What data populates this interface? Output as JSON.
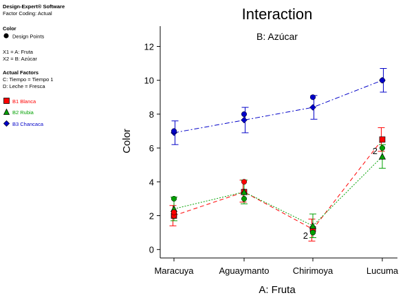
{
  "sidebar": {
    "software_title": "Design-Expert® Software",
    "factor_coding": "Factor Coding: Actual",
    "color_heading": "Color",
    "design_points_label": "Design Points",
    "x1_label": "X1 = A: Fruta",
    "x2_label": "X2 = B: Azúcar",
    "actual_factors_heading": "Actual Factors",
    "factor_c": "C: Tiempo = Tiempo 1",
    "factor_d": "D: Leche = Fresca",
    "legend": [
      {
        "label": "B1 Blanca",
        "color": "#ff0000",
        "symbol": "square"
      },
      {
        "label": "B2 Rubia",
        "color": "#00a000",
        "symbol": "triangle"
      },
      {
        "label": "B3 Chancaca",
        "color": "#0000c8",
        "symbol": "diamond"
      }
    ]
  },
  "chart_data": {
    "type": "line",
    "title": "Interaction",
    "subtitle": "B: Azúcar",
    "xlabel": "A: Fruta",
    "ylabel": "Color",
    "categories": [
      "Maracuya",
      "Aguaymanto",
      "Chirimoya",
      "Lucuma"
    ],
    "ylim": [
      -0.5,
      13.2
    ],
    "yticks": [
      0,
      2,
      4,
      6,
      8,
      10,
      12
    ],
    "series": [
      {
        "name": "B1 Blanca",
        "color": "#ff0000",
        "marker": "square",
        "dash": "dash",
        "values": [
          2.0,
          3.4,
          1.2,
          6.5
        ],
        "lower": [
          1.4,
          2.8,
          0.5,
          5.8
        ],
        "upper": [
          2.6,
          4.1,
          1.8,
          7.2
        ]
      },
      {
        "name": "B2 Rubia",
        "color": "#00a000",
        "marker": "triangle",
        "dash": "dot",
        "values": [
          2.4,
          3.4,
          1.4,
          5.5
        ],
        "lower": [
          1.7,
          2.7,
          0.7,
          4.8
        ],
        "upper": [
          3.1,
          4.1,
          2.1,
          6.2
        ]
      },
      {
        "name": "B3 Chancaca",
        "color": "#0000c8",
        "marker": "diamond",
        "dash": "dashdot",
        "values": [
          6.9,
          7.65,
          8.4,
          10.0
        ],
        "lower": [
          6.2,
          6.9,
          7.7,
          9.3
        ],
        "upper": [
          7.6,
          8.4,
          9.1,
          10.7
        ]
      }
    ],
    "design_points": [
      {
        "category": "Maracuya",
        "y": 2.0,
        "color": "#ff0000"
      },
      {
        "category": "Maracuya",
        "y": 2.2,
        "color": "#ff0000"
      },
      {
        "category": "Maracuya",
        "y": 3.0,
        "color": "#00a000"
      },
      {
        "category": "Maracuya",
        "y": 7.0,
        "color": "#0000c8"
      },
      {
        "category": "Aguaymanto",
        "y": 4.0,
        "color": "#ff0000"
      },
      {
        "category": "Aguaymanto",
        "y": 3.0,
        "color": "#00a000"
      },
      {
        "category": "Aguaymanto",
        "y": 8.0,
        "color": "#0000c8"
      },
      {
        "category": "Chirimoya",
        "y": 1.0,
        "color": "#ff0000"
      },
      {
        "category": "Chirimoya",
        "y": 1.0,
        "color": "#00a000"
      },
      {
        "category": "Chirimoya",
        "y": 9.0,
        "color": "#0000c8"
      },
      {
        "category": "Lucuma",
        "y": 6.0,
        "color": "#00a000"
      },
      {
        "category": "Lucuma",
        "y": 10.0,
        "color": "#0000c8"
      }
    ],
    "point_labels": [
      {
        "category": "Chirimoya",
        "y": 1.0,
        "text": "2"
      },
      {
        "category": "Lucuma",
        "y": 6.0,
        "text": "2"
      }
    ],
    "grid": false,
    "legend_position": "left"
  }
}
